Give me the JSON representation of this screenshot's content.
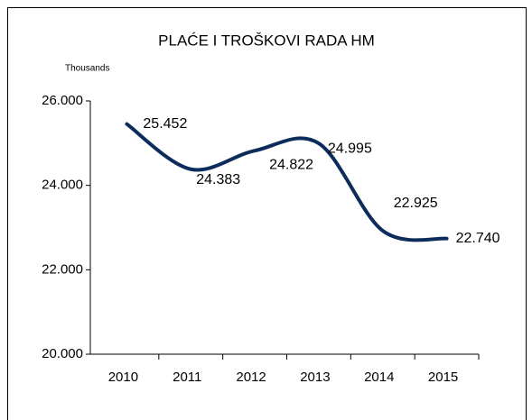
{
  "chart_data": {
    "type": "line",
    "title": "PLAĆE I TROŠKOVI RADA HM",
    "y_unit_label": "Thousands",
    "categories": [
      "2010",
      "2011",
      "2012",
      "2013",
      "2014",
      "2015"
    ],
    "series": [
      {
        "name": "Plaće i troškovi rada HM",
        "color": "#0c2c5b",
        "values": [
          25.452,
          24.383,
          24.822,
          24.995,
          22.925,
          22.74
        ],
        "value_labels": [
          "25.452",
          "24.383",
          "24.822",
          "24.995",
          "22.925",
          "22.740"
        ]
      }
    ],
    "ylim": [
      20,
      26
    ],
    "yticks": [
      {
        "value": 20,
        "label": "20.000"
      },
      {
        "value": 22,
        "label": "22.000"
      },
      {
        "value": 24,
        "label": "24.000"
      },
      {
        "value": 26,
        "label": "26.000"
      }
    ],
    "smooth": true,
    "grid": false
  }
}
